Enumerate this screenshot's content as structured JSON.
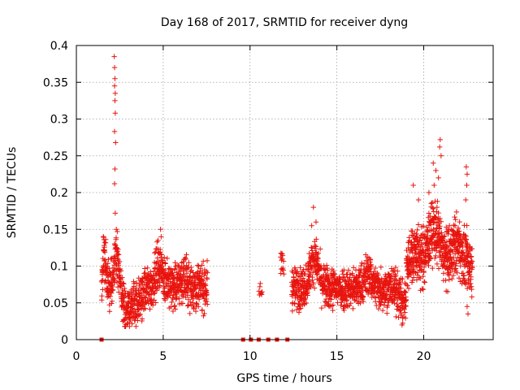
{
  "chart_data": {
    "type": "scatter",
    "title": "Day 168 of 2017, SRMTID for receiver dyng",
    "xlabel": "GPS time / hours",
    "ylabel": "SRMTID / TECUs",
    "xlim": [
      0,
      24
    ],
    "ylim": [
      0,
      0.4
    ],
    "grid": true,
    "marker": "plus",
    "series_color": "#e8140e",
    "x_ticks": [
      {
        "value": 0,
        "label": "0"
      },
      {
        "value": 5,
        "label": "5"
      },
      {
        "value": 10,
        "label": "10"
      },
      {
        "value": 15,
        "label": "15"
      },
      {
        "value": 20,
        "label": "20"
      }
    ],
    "y_ticks": [
      {
        "value": 0,
        "label": "0"
      },
      {
        "value": 0.05,
        "label": "0.05"
      },
      {
        "value": 0.1,
        "label": "0.1"
      },
      {
        "value": 0.15,
        "label": "0.15"
      },
      {
        "value": 0.2,
        "label": "0.2"
      },
      {
        "value": 0.25,
        "label": "0.25"
      },
      {
        "value": 0.3,
        "label": "0.3"
      },
      {
        "value": 0.35,
        "label": "0.35"
      },
      {
        "value": 0.4,
        "label": "0.4"
      }
    ],
    "zero_markers": [
      1.45,
      9.6,
      10.05,
      10.5,
      11.05,
      11.55,
      12.15
    ],
    "series": [
      {
        "name": "SRMTID",
        "segments": [
          {
            "start": 1.45,
            "end": 7.55,
            "points": 900,
            "base": 0.072,
            "noise": 0.022,
            "bumps": [
              {
                "center": 1.6,
                "width": 0.15,
                "amp": 0.04
              },
              {
                "center": 2.3,
                "width": 0.15,
                "amp": 0.05
              },
              {
                "center": 4.8,
                "width": 0.3,
                "amp": 0.03
              },
              {
                "center": 6.2,
                "width": 0.3,
                "amp": 0.01
              }
            ],
            "dips": [
              {
                "center": 2.9,
                "width": 0.3,
                "amp": 0.03
              },
              {
                "center": 3.5,
                "width": 0.4,
                "amp": 0.02
              }
            ]
          },
          {
            "start": 10.5,
            "end": 10.7,
            "points": 8,
            "base": 0.065,
            "noise": 0.008,
            "bumps": [],
            "dips": []
          },
          {
            "start": 11.75,
            "end": 11.95,
            "points": 14,
            "base": 0.105,
            "noise": 0.013,
            "bumps": [],
            "dips": []
          },
          {
            "start": 12.4,
            "end": 19.0,
            "points": 950,
            "base": 0.07,
            "noise": 0.02,
            "bumps": [
              {
                "center": 13.7,
                "width": 0.35,
                "amp": 0.04
              },
              {
                "center": 16.8,
                "width": 0.3,
                "amp": 0.02
              }
            ],
            "dips": [
              {
                "center": 18.8,
                "width": 0.25,
                "amp": 0.02
              }
            ]
          },
          {
            "start": 19.0,
            "end": 22.8,
            "points": 650,
            "base": 0.1,
            "noise": 0.028,
            "bumps": [
              {
                "center": 19.5,
                "width": 0.3,
                "amp": 0.02
              },
              {
                "center": 20.6,
                "width": 0.5,
                "amp": 0.05
              },
              {
                "center": 21.9,
                "width": 0.4,
                "amp": 0.03
              }
            ],
            "dips": []
          }
        ],
        "spikes": [
          {
            "x": 2.18,
            "y": 0.385
          },
          {
            "x": 2.2,
            "y": 0.37
          },
          {
            "x": 2.22,
            "y": 0.355
          },
          {
            "x": 2.2,
            "y": 0.345
          },
          {
            "x": 2.24,
            "y": 0.335
          },
          {
            "x": 2.22,
            "y": 0.325
          },
          {
            "x": 2.24,
            "y": 0.308
          },
          {
            "x": 2.2,
            "y": 0.283
          },
          {
            "x": 2.26,
            "y": 0.268
          },
          {
            "x": 2.22,
            "y": 0.232
          },
          {
            "x": 2.2,
            "y": 0.212
          },
          {
            "x": 2.24,
            "y": 0.172
          },
          {
            "x": 2.3,
            "y": 0.15
          },
          {
            "x": 1.55,
            "y": 0.14
          },
          {
            "x": 1.6,
            "y": 0.128
          },
          {
            "x": 4.85,
            "y": 0.15
          },
          {
            "x": 4.7,
            "y": 0.135
          },
          {
            "x": 13.65,
            "y": 0.18
          },
          {
            "x": 13.8,
            "y": 0.16
          },
          {
            "x": 13.55,
            "y": 0.155
          },
          {
            "x": 20.55,
            "y": 0.24
          },
          {
            "x": 20.7,
            "y": 0.23
          },
          {
            "x": 20.95,
            "y": 0.272
          },
          {
            "x": 20.92,
            "y": 0.262
          },
          {
            "x": 21.0,
            "y": 0.25
          },
          {
            "x": 20.85,
            "y": 0.22
          },
          {
            "x": 20.6,
            "y": 0.21
          },
          {
            "x": 22.45,
            "y": 0.235
          },
          {
            "x": 22.5,
            "y": 0.225
          },
          {
            "x": 22.48,
            "y": 0.21
          },
          {
            "x": 22.42,
            "y": 0.19
          },
          {
            "x": 19.4,
            "y": 0.21
          },
          {
            "x": 19.7,
            "y": 0.19
          },
          {
            "x": 20.3,
            "y": 0.2
          },
          {
            "x": 22.55,
            "y": 0.035
          },
          {
            "x": 22.5,
            "y": 0.045
          },
          {
            "x": 18.75,
            "y": 0.02
          },
          {
            "x": 2.95,
            "y": 0.022
          }
        ]
      }
    ]
  }
}
